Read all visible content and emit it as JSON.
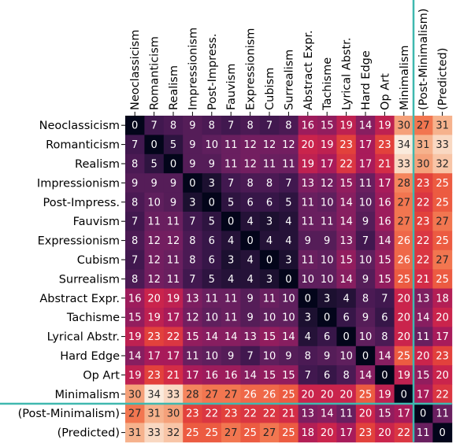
{
  "chart_data": {
    "type": "heatmap",
    "title": "",
    "xlabel": "",
    "ylabel": "",
    "colormap": "rocket",
    "value_range": [
      0,
      34
    ],
    "row_labels": [
      "Neoclassicism",
      "Romanticism",
      "Realism",
      "Impressionism",
      "Post-Impress.",
      "Fauvism",
      "Expressionism",
      "Cubism",
      "Surrealism",
      "Abstract Expr.",
      "Tachisme",
      "Lyrical Abstr.",
      "Hard Edge",
      "Op Art",
      "Minimalism",
      "(Post-Minimalism)",
      "(Predicted)"
    ],
    "col_labels": [
      "Neoclassicism",
      "Romanticism",
      "Realism",
      "Impressionism",
      "Post-Impress.",
      "Fauvism",
      "Expressionism",
      "Cubism",
      "Surrealism",
      "Abstract Expr.",
      "Tachisme",
      "Lyrical Abstr.",
      "Hard Edge",
      "Op Art",
      "Minimalism",
      "(Post-Minimalism)",
      "(Predicted)"
    ],
    "values": [
      [
        0,
        7,
        8,
        9,
        8,
        7,
        8,
        7,
        8,
        16,
        15,
        19,
        14,
        19,
        30,
        27,
        31
      ],
      [
        7,
        0,
        5,
        9,
        10,
        11,
        12,
        12,
        12,
        20,
        19,
        23,
        17,
        23,
        34,
        31,
        33
      ],
      [
        8,
        5,
        0,
        9,
        9,
        11,
        12,
        11,
        11,
        19,
        17,
        22,
        17,
        21,
        33,
        30,
        32
      ],
      [
        9,
        9,
        9,
        0,
        3,
        7,
        8,
        8,
        7,
        13,
        12,
        15,
        11,
        17,
        28,
        23,
        25
      ],
      [
        8,
        10,
        9,
        3,
        0,
        5,
        6,
        6,
        5,
        11,
        10,
        14,
        10,
        16,
        27,
        22,
        25
      ],
      [
        7,
        11,
        11,
        7,
        5,
        0,
        4,
        3,
        4,
        11,
        11,
        14,
        9,
        16,
        27,
        23,
        27
      ],
      [
        8,
        12,
        12,
        8,
        6,
        4,
        0,
        4,
        4,
        9,
        9,
        13,
        7,
        14,
        26,
        22,
        25
      ],
      [
        7,
        12,
        11,
        8,
        6,
        3,
        4,
        0,
        3,
        11,
        10,
        15,
        10,
        15,
        26,
        22,
        27
      ],
      [
        8,
        12,
        11,
        7,
        5,
        4,
        4,
        3,
        0,
        10,
        10,
        14,
        9,
        15,
        25,
        21,
        25
      ],
      [
        16,
        20,
        19,
        13,
        11,
        11,
        9,
        11,
        10,
        0,
        3,
        4,
        8,
        7,
        20,
        13,
        18
      ],
      [
        15,
        19,
        17,
        12,
        10,
        11,
        9,
        10,
        10,
        3,
        0,
        6,
        9,
        6,
        20,
        14,
        20
      ],
      [
        19,
        23,
        22,
        15,
        14,
        14,
        13,
        15,
        14,
        4,
        6,
        0,
        10,
        8,
        20,
        11,
        17
      ],
      [
        14,
        17,
        17,
        11,
        10,
        9,
        7,
        10,
        9,
        8,
        9,
        10,
        0,
        14,
        25,
        20,
        23
      ],
      [
        19,
        23,
        21,
        17,
        16,
        16,
        14,
        15,
        15,
        7,
        6,
        8,
        14,
        0,
        19,
        15,
        20
      ],
      [
        30,
        34,
        33,
        28,
        27,
        27,
        26,
        26,
        25,
        20,
        20,
        20,
        25,
        19,
        0,
        17,
        22
      ],
      [
        27,
        31,
        30,
        23,
        22,
        23,
        22,
        22,
        21,
        13,
        14,
        11,
        20,
        15,
        17,
        0,
        11
      ],
      [
        31,
        33,
        32,
        25,
        25,
        27,
        25,
        27,
        25,
        18,
        20,
        17,
        23,
        20,
        22,
        11,
        0
      ]
    ],
    "separator_color": "#3fb8af",
    "colorbar": false,
    "grid": false
  }
}
